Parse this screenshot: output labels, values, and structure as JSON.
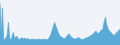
{
  "chart_data": {
    "type": "area",
    "values": [
      320,
      60,
      280,
      50,
      40,
      55,
      75,
      170,
      50,
      40,
      65,
      95,
      50,
      60,
      65,
      50,
      40,
      50,
      55,
      45,
      50,
      50,
      45,
      48,
      42,
      40,
      45,
      42,
      45,
      42,
      40,
      42,
      45,
      42,
      40,
      42,
      45,
      42,
      40,
      42,
      45,
      60,
      80,
      110,
      140,
      170,
      145,
      120,
      95,
      75,
      65,
      58,
      52,
      48,
      52,
      65,
      75,
      85,
      68,
      58,
      52,
      48,
      44,
      48,
      52,
      56,
      48,
      44,
      40,
      44,
      48,
      52,
      56,
      60,
      65,
      70,
      75,
      85,
      95,
      105,
      95,
      85,
      95,
      105,
      115,
      125,
      175,
      210,
      155,
      125,
      110,
      100,
      90,
      80,
      70,
      80,
      90,
      100,
      110,
      120
    ],
    "color": "#5aaad8",
    "ylim": [
      0,
      340
    ],
    "tick_labels": false,
    "grid": false
  }
}
